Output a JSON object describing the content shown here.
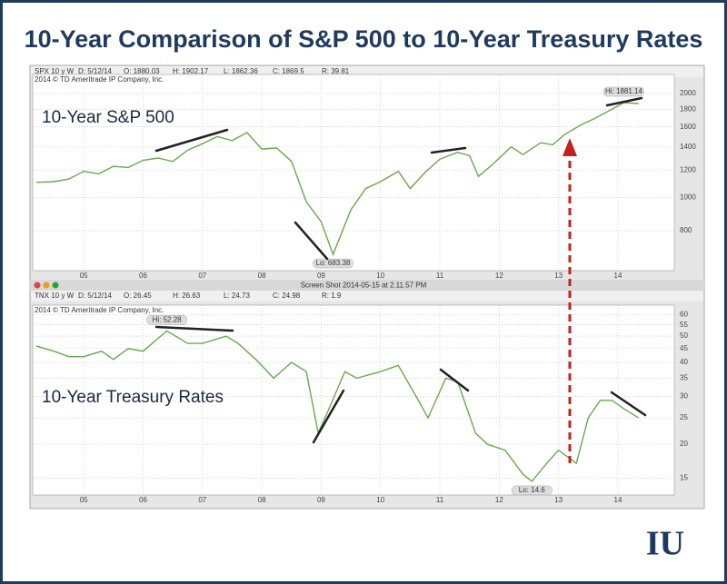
{
  "title": "10-Year Comparison of S&P 500 to 10-Year Treasury Rates",
  "window_title": "Screen Shot 2014-05-15 at 2.11.57 PM",
  "logo": "IU",
  "chart_data": [
    {
      "type": "line",
      "label": "10-Year S&P 500",
      "header": [
        "SPX 10 y W",
        "D: 5/12/14",
        "O: 1880.03",
        "H: 1902.17",
        "L: 1862.36",
        "C: 1869.5",
        "R: 39.81"
      ],
      "copyright": "2014 © TD Ameritrade IP Company, Inc.",
      "high_label": "Hi: 1881.14",
      "low_label": "Lo: 683.38",
      "log_scale": true,
      "grid": true,
      "x": [
        2004.2,
        2004.5,
        2004.75,
        2005.0,
        2005.25,
        2005.5,
        2005.75,
        2006.0,
        2006.25,
        2006.5,
        2006.75,
        2007.0,
        2007.25,
        2007.5,
        2007.75,
        2008.0,
        2008.25,
        2008.5,
        2008.75,
        2009.0,
        2009.2,
        2009.5,
        2009.75,
        2010.0,
        2010.3,
        2010.5,
        2010.75,
        2011.0,
        2011.3,
        2011.5,
        2011.65,
        2011.9,
        2012.2,
        2012.4,
        2012.7,
        2012.9,
        2013.1,
        2013.4,
        2013.6,
        2013.9,
        2014.1,
        2014.35
      ],
      "series": [
        {
          "color": "#6aa84f",
          "values": [
            1105,
            1110,
            1130,
            1190,
            1170,
            1230,
            1220,
            1280,
            1300,
            1270,
            1370,
            1430,
            1500,
            1460,
            1540,
            1380,
            1390,
            1270,
            970,
            850,
            683.38,
            920,
            1060,
            1110,
            1190,
            1060,
            1180,
            1290,
            1350,
            1320,
            1150,
            1250,
            1400,
            1330,
            1440,
            1420,
            1520,
            1630,
            1690,
            1800,
            1881.14,
            1869.5
          ]
        }
      ],
      "xlim": [
        2004.14,
        2014.95
      ],
      "xticks": [
        {
          "value": 2005,
          "label": "05"
        },
        {
          "value": 2006,
          "label": "06"
        },
        {
          "value": 2007,
          "label": "07"
        },
        {
          "value": 2008,
          "label": "08"
        },
        {
          "value": 2009,
          "label": "09"
        },
        {
          "value": 2010,
          "label": "10"
        },
        {
          "value": 2011,
          "label": "11"
        },
        {
          "value": 2012,
          "label": "12"
        },
        {
          "value": 2013,
          "label": "13"
        },
        {
          "value": 2014,
          "label": "14"
        }
      ],
      "ylim": [
        613,
        2270
      ],
      "yticks": [
        800,
        1000,
        1200,
        1400,
        1600,
        1800,
        2000
      ]
    },
    {
      "type": "line",
      "label": "10-Year Treasury Rates",
      "header": [
        "TNX 10 y W",
        "D: 5/12/14",
        "O: 26.45",
        "H: 26.63",
        "L: 24.73",
        "C: 24.98",
        "R: 1.9"
      ],
      "copyright": "2014 © TD Ameritrade IP Company, Inc.",
      "high_label": "Hi: 52.28",
      "low_label": "Lo: 14.6",
      "log_scale": true,
      "grid": true,
      "x": [
        2004.2,
        2004.5,
        2004.75,
        2005.0,
        2005.3,
        2005.5,
        2005.75,
        2006.0,
        2006.4,
        2006.75,
        2007.0,
        2007.4,
        2007.6,
        2007.9,
        2008.2,
        2008.5,
        2008.75,
        2008.95,
        2009.1,
        2009.4,
        2009.6,
        2010.0,
        2010.3,
        2010.6,
        2010.8,
        2011.1,
        2011.3,
        2011.6,
        2011.8,
        2012.1,
        2012.4,
        2012.55,
        2012.8,
        2013.0,
        2013.3,
        2013.5,
        2013.7,
        2013.9,
        2014.1,
        2014.35
      ],
      "series": [
        {
          "color": "#6aa84f",
          "values": [
            46,
            44,
            42,
            42,
            44,
            41,
            45,
            44,
            52.28,
            47,
            47,
            50,
            47,
            41,
            35,
            40,
            37,
            22,
            26,
            37,
            35,
            37,
            39,
            30,
            25,
            35,
            34,
            22,
            20,
            19,
            15.5,
            14.6,
            17,
            19,
            17,
            25,
            29,
            29,
            27,
            24.98
          ]
        }
      ],
      "xlim": [
        2004.14,
        2014.95
      ],
      "xticks": [
        {
          "value": 2005,
          "label": "05"
        },
        {
          "value": 2006,
          "label": "06"
        },
        {
          "value": 2007,
          "label": "07"
        },
        {
          "value": 2008,
          "label": "08"
        },
        {
          "value": 2009,
          "label": "09"
        },
        {
          "value": 2010,
          "label": "10"
        },
        {
          "value": 2011,
          "label": "11"
        },
        {
          "value": 2012,
          "label": "12"
        },
        {
          "value": 2013,
          "label": "13"
        },
        {
          "value": 2014,
          "label": "14"
        }
      ],
      "ylim": [
        13,
        65
      ],
      "yticks": [
        15,
        20,
        25,
        30,
        35,
        40,
        45,
        50,
        55,
        60
      ]
    }
  ]
}
